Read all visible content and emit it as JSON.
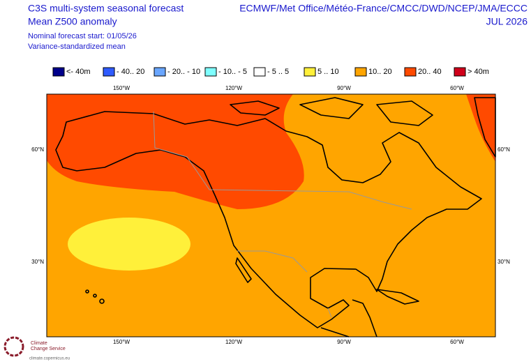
{
  "header": {
    "title_lines": [
      "C3S multi-system seasonal forecast",
      "Mean Z500 anomaly"
    ],
    "sub_lines": [
      "Nominal forecast start: 01/05/26",
      "Variance-standardized mean"
    ],
    "right_lines": [
      "ECMWF/Met Office/Météo-France/CMCC/DWD/NCEP/JMA/ECCC",
      "JUL 2026"
    ]
  },
  "legend": [
    {
      "label": "<- 40m",
      "color": "#00008b"
    },
    {
      "label": "- 40.. 20",
      "color": "#2f5bff"
    },
    {
      "label": "- 20.. - 10",
      "color": "#6aa6ff"
    },
    {
      "label": "- 10.. - 5",
      "color": "#7fffff"
    },
    {
      "label": "- 5 .. 5",
      "color": "#ffffff"
    },
    {
      "label": "5 .. 10",
      "color": "#fff03a"
    },
    {
      "label": "10.. 20",
      "color": "#ffa500"
    },
    {
      "label": "20.. 40",
      "color": "#ff4a00"
    },
    {
      "label": ">  40m",
      "color": "#d0001a"
    }
  ],
  "map": {
    "lon_labels": [
      "150°W",
      "120°W",
      "90°W",
      "60°W"
    ],
    "lat_labels": [
      "60°N",
      "30°N"
    ]
  },
  "logo": {
    "name_lines": [
      "Climate",
      "Change Service"
    ],
    "url": "climate.copernicus.eu"
  }
}
